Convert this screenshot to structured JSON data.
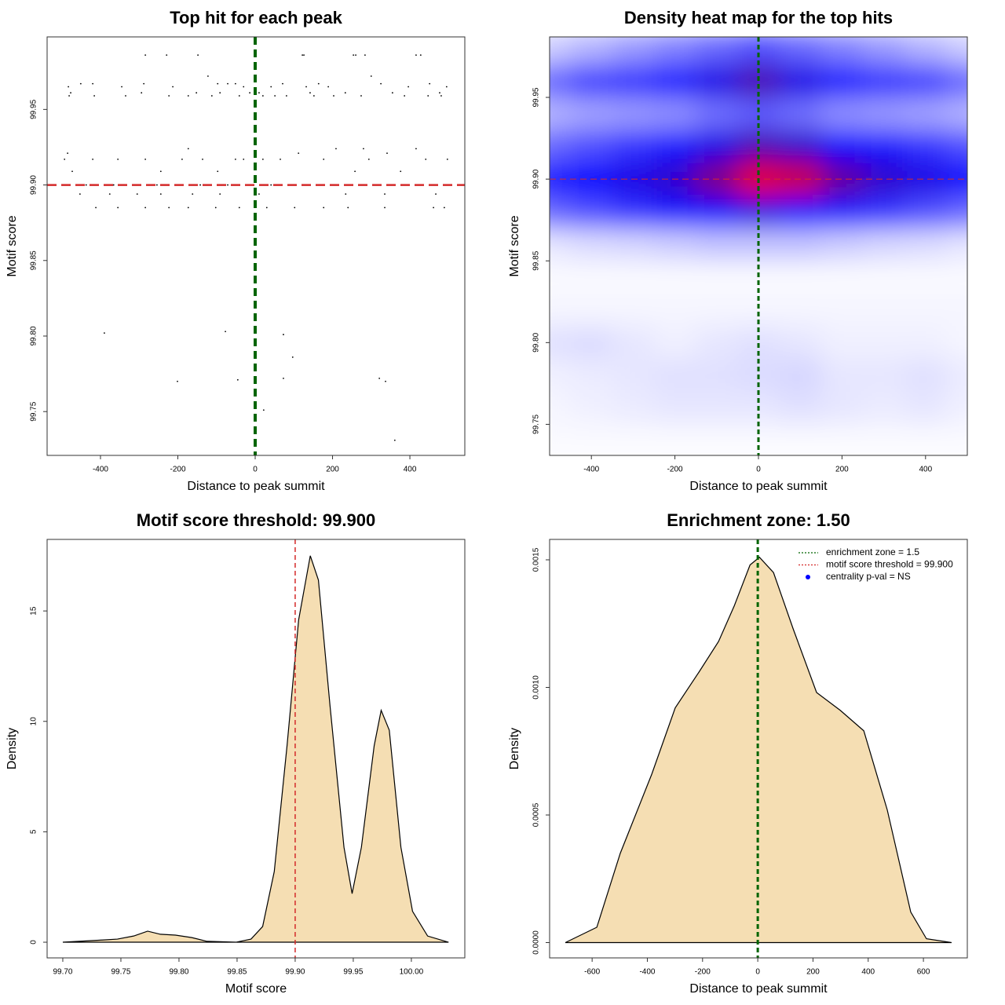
{
  "chart_data": [
    {
      "type": "scatter",
      "title": "Top hit for each peak",
      "xlabel": "Distance to peak summit",
      "ylabel": "Motif score",
      "xlim": [
        -538,
        542
      ],
      "ylim": [
        99.721,
        99.998
      ],
      "xticks": [
        -400,
        -200,
        0,
        200,
        400
      ],
      "yticks": [
        99.75,
        {
          "value": 99.8,
          "label": "99.80"
        },
        99.85,
        {
          "value": 99.9,
          "label": "99.90"
        },
        99.95
      ],
      "color": "#000000",
      "vline": {
        "value": 0,
        "color": "#006400"
      },
      "hline": {
        "value": 99.9,
        "color": "#d42a2a"
      },
      "x": [
        -284,
        -229,
        -148,
        122,
        126,
        254,
        260,
        284,
        416,
        428,
        -122,
        300,
        -451,
        -420,
        -288,
        -97,
        -71,
        -51,
        71,
        164,
        325,
        451,
        -483,
        -345,
        -213,
        -30,
        41,
        132,
        189,
        396,
        495,
        -477,
        -294,
        -152,
        -91,
        -14,
        10,
        142,
        233,
        355,
        477,
        -481,
        -416,
        -335,
        -223,
        -173,
        -112,
        -41,
        20,
        51,
        81,
        152,
        203,
        274,
        386,
        447,
        481,
        -173,
        209,
        280,
        416,
        -485,
        112,
        341,
        -493,
        -420,
        -355,
        -284,
        -189,
        -136,
        -51,
        -30,
        20,
        65,
        177,
        294,
        441,
        497,
        -473,
        -244,
        -97,
        258,
        376,
        -487,
        -437,
        -366,
        -315,
        -254,
        -193,
        -142,
        -71,
        -10,
        41,
        91,
        162,
        234,
        311,
        386,
        467,
        528,
        -453,
        -376,
        -305,
        -244,
        -162,
        -91,
        10,
        234,
        335,
        467,
        -412,
        -355,
        -284,
        -223,
        -173,
        -102,
        -41,
        30,
        102,
        177,
        240,
        335,
        461,
        489,
        -390,
        -77,
        73,
        97,
        -201,
        -45,
        73,
        321,
        337,
        22,
        361
      ],
      "y": [
        99.986,
        99.986,
        99.986,
        99.986,
        99.986,
        99.986,
        99.986,
        99.986,
        99.986,
        99.986,
        99.972,
        99.972,
        99.967,
        99.967,
        99.967,
        99.967,
        99.967,
        99.967,
        99.967,
        99.967,
        99.967,
        99.967,
        99.965,
        99.965,
        99.965,
        99.965,
        99.965,
        99.965,
        99.965,
        99.965,
        99.965,
        99.961,
        99.961,
        99.961,
        99.961,
        99.961,
        99.961,
        99.961,
        99.961,
        99.961,
        99.961,
        99.959,
        99.959,
        99.959,
        99.959,
        99.959,
        99.959,
        99.959,
        99.959,
        99.959,
        99.959,
        99.959,
        99.959,
        99.959,
        99.959,
        99.959,
        99.959,
        99.924,
        99.924,
        99.924,
        99.924,
        99.921,
        99.921,
        99.921,
        99.917,
        99.917,
        99.917,
        99.917,
        99.917,
        99.917,
        99.917,
        99.917,
        99.917,
        99.917,
        99.917,
        99.917,
        99.917,
        99.917,
        99.909,
        99.909,
        99.909,
        99.909,
        99.909,
        99.9,
        99.9,
        99.9,
        99.9,
        99.9,
        99.9,
        99.9,
        99.9,
        99.9,
        99.9,
        99.9,
        99.9,
        99.9,
        99.9,
        99.9,
        99.9,
        99.9,
        99.894,
        99.894,
        99.894,
        99.894,
        99.894,
        99.894,
        99.894,
        99.894,
        99.894,
        99.894,
        99.885,
        99.885,
        99.885,
        99.885,
        99.885,
        99.885,
        99.885,
        99.885,
        99.885,
        99.885,
        99.885,
        99.885,
        99.885,
        99.885,
        99.802,
        99.803,
        99.801,
        99.786,
        99.77,
        99.771,
        99.772,
        99.772,
        99.77,
        99.751,
        99.731
      ]
    },
    {
      "type": "heatmap",
      "title": "Density heat map for the top hits",
      "xlabel": "Distance to peak summit",
      "ylabel": "Motif score",
      "xlim": [
        -500,
        500
      ],
      "ylim": [
        99.731,
        99.987
      ],
      "xticks": [
        -400,
        -200,
        0,
        200,
        400
      ],
      "yticks": [
        99.75,
        {
          "value": 99.8,
          "label": "99.80"
        },
        99.85,
        {
          "value": 99.9,
          "label": "99.90"
        },
        99.95
      ],
      "vline": {
        "value": 0,
        "color": "#006400"
      },
      "hline": {
        "value": 99.9,
        "color": "#d42a2a"
      },
      "x": [
        -500,
        -400,
        -300,
        -200,
        -100,
        0,
        100,
        200,
        300,
        400,
        500
      ],
      "y": [
        99.98,
        99.96,
        99.94,
        99.92,
        99.9,
        99.88,
        99.86,
        99.84,
        99.82,
        99.8,
        99.78,
        99.76,
        99.74
      ],
      "z": [
        [
          0.1,
          0.15,
          0.2,
          0.25,
          0.3,
          0.35,
          0.3,
          0.25,
          0.2,
          0.15,
          0.1
        ],
        [
          0.3,
          0.38,
          0.4,
          0.45,
          0.55,
          0.65,
          0.55,
          0.45,
          0.4,
          0.38,
          0.3
        ],
        [
          0.15,
          0.18,
          0.2,
          0.22,
          0.28,
          0.32,
          0.28,
          0.22,
          0.2,
          0.18,
          0.15
        ],
        [
          0.3,
          0.35,
          0.4,
          0.45,
          0.55,
          0.65,
          0.6,
          0.5,
          0.45,
          0.4,
          0.35
        ],
        [
          0.45,
          0.5,
          0.55,
          0.6,
          0.75,
          0.95,
          0.9,
          0.7,
          0.6,
          0.55,
          0.5
        ],
        [
          0.3,
          0.35,
          0.4,
          0.45,
          0.5,
          0.55,
          0.5,
          0.45,
          0.4,
          0.35,
          0.3
        ],
        [
          0.05,
          0.07,
          0.08,
          0.1,
          0.12,
          0.12,
          0.12,
          0.1,
          0.08,
          0.07,
          0.05
        ],
        [
          0.01,
          0.01,
          0.01,
          0.01,
          0.01,
          0.01,
          0.01,
          0.01,
          0.01,
          0.01,
          0.01
        ],
        [
          0.02,
          0.02,
          0.02,
          0.02,
          0.02,
          0.02,
          0.02,
          0.02,
          0.02,
          0.02,
          0.02
        ],
        [
          0.06,
          0.07,
          0.05,
          0.03,
          0.05,
          0.06,
          0.05,
          0.03,
          0.03,
          0.03,
          0.02
        ],
        [
          0.03,
          0.04,
          0.05,
          0.06,
          0.06,
          0.07,
          0.08,
          0.05,
          0.05,
          0.06,
          0.04
        ],
        [
          0.02,
          0.03,
          0.04,
          0.05,
          0.05,
          0.05,
          0.06,
          0.05,
          0.04,
          0.05,
          0.03
        ],
        [
          0.01,
          0.01,
          0.01,
          0.01,
          0.01,
          0.01,
          0.01,
          0.01,
          0.01,
          0.01,
          0.01
        ]
      ]
    },
    {
      "type": "density",
      "title": "Motif score threshold: 99.900",
      "xlabel": "Motif score",
      "ylabel": "Density",
      "xlim": [
        99.6865,
        100.046
      ],
      "ylim": [
        -0.71,
        18.24
      ],
      "xticks": [
        {
          "value": 99.7,
          "label": "99.70"
        },
        99.75,
        {
          "value": 99.8,
          "label": "99.80"
        },
        99.85,
        {
          "value": 99.9,
          "label": "99.90"
        },
        99.95,
        {
          "value": 100,
          "label": "100.00"
        }
      ],
      "yticks": [
        0,
        5,
        10,
        15
      ],
      "color": "#f5deb3",
      "vline": {
        "value": 99.9,
        "color": "#d42a2a"
      },
      "x": [
        99.7,
        99.734,
        99.747,
        99.761,
        99.773,
        99.784,
        99.797,
        99.811,
        99.824,
        99.849,
        99.862,
        99.872,
        99.882,
        99.893,
        99.903,
        99.913,
        99.92,
        99.93,
        99.942,
        99.949,
        99.957,
        99.968,
        99.974,
        99.981,
        99.991,
        100.001,
        100.014,
        100.032
      ],
      "values": [
        0,
        0.1,
        0.14,
        0.28,
        0.5,
        0.36,
        0.32,
        0.21,
        0.04,
        0,
        0.14,
        0.71,
        3.2,
        8.9,
        14.6,
        17.5,
        16.4,
        10.7,
        4.3,
        2.2,
        4.3,
        8.9,
        10.5,
        9.6,
        4.3,
        1.4,
        0.28,
        0
      ]
    },
    {
      "type": "density",
      "title": "Enrichment zone: 1.50",
      "xlabel": "Distance to peak summit",
      "ylabel": "Density",
      "xlim": [
        -754,
        759
      ],
      "ylim": [
        -6e-05,
        0.00158
      ],
      "xticks": [
        -600,
        -400,
        -200,
        0,
        200,
        400,
        600
      ],
      "yticks": [
        {
          "value": 0,
          "label": "0.0000"
        },
        {
          "value": 0.0005,
          "label": "0.0005"
        },
        {
          "value": 0.001,
          "label": "0.0010"
        },
        {
          "value": 0.0015,
          "label": "0.0015"
        }
      ],
      "color": "#f5deb3",
      "vline": {
        "value": 0,
        "color": "#006400"
      },
      "legend": [
        {
          "text": "enrichment zone = 1.5",
          "color": "#006400",
          "marker": "line"
        },
        {
          "text": "motif score threshold = 99.900",
          "color": "#d42a2a",
          "marker": "line"
        },
        {
          "text": "centrality p-val = NS",
          "color": "#0000ff",
          "marker": "dot"
        }
      ],
      "x": [
        -697,
        -583,
        -498,
        -384,
        -299,
        -213,
        -142,
        -85,
        -28,
        6,
        57,
        128,
        213,
        299,
        384,
        469,
        554,
        611,
        702
      ],
      "values": [
        0,
        6e-05,
        0.00035,
        0.00066,
        0.00092,
        0.00106,
        0.00118,
        0.00132,
        0.00148,
        0.00151,
        0.00145,
        0.00123,
        0.00098,
        0.00091,
        0.00083,
        0.00052,
        0.00012,
        1.5e-05,
        0
      ]
    }
  ]
}
